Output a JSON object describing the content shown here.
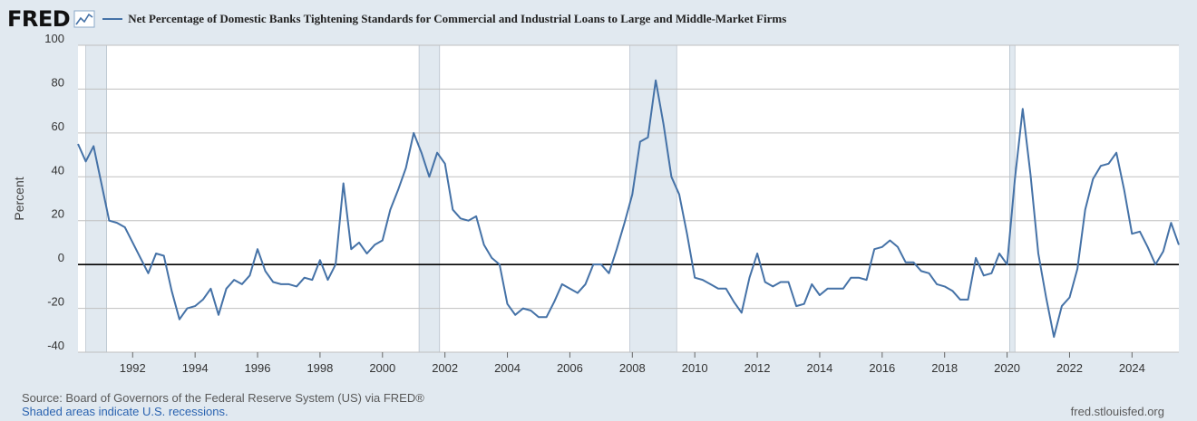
{
  "header": {
    "logo": "FRED",
    "logo_icon": "line-chart-icon",
    "series_title": "Net Percentage of Domestic Banks Tightening Standards for Commercial and Industrial Loans to Large and Middle-Market Firms"
  },
  "footer": {
    "source": "Source: Board of Governors of the Federal Reserve System (US) via FRED®",
    "note": "Shaded areas indicate U.S. recessions.",
    "url": "fred.stlouisfed.org"
  },
  "colors": {
    "background": "#e1e9f0",
    "series": "#4572a7",
    "recession": "#e1e9f0",
    "gridline": "#c0c0c0"
  },
  "chart_data": {
    "type": "line",
    "title": "Net Percentage of Domestic Banks Tightening Standards for Commercial and Industrial Loans to Large and Middle-Market Firms",
    "xlabel": "",
    "ylabel": "Percent",
    "xlim": [
      1990.25,
      2025.5
    ],
    "ylim": [
      -40,
      100
    ],
    "yticks": [
      -40,
      -20,
      0,
      20,
      40,
      60,
      80,
      100
    ],
    "xticks": [
      1992,
      1994,
      1996,
      1998,
      2000,
      2002,
      2004,
      2006,
      2008,
      2010,
      2012,
      2014,
      2016,
      2018,
      2020,
      2022,
      2024
    ],
    "grid": true,
    "zero_line": true,
    "recessions": [
      [
        1990.5,
        1991.17
      ],
      [
        2001.17,
        2001.83
      ],
      [
        2007.92,
        2009.42
      ],
      [
        2020.08,
        2020.25
      ]
    ],
    "series": [
      {
        "name": "Net Percentage of Domestic Banks Tightening Standards for Commercial and Industrial Loans to Large and Middle-Market Firms",
        "x": [
          1990.25,
          1990.5,
          1990.75,
          1991,
          1991.25,
          1991.5,
          1991.75,
          1992,
          1992.25,
          1992.5,
          1992.75,
          1993,
          1993.25,
          1993.5,
          1993.75,
          1994,
          1994.25,
          1994.5,
          1994.75,
          1995,
          1995.25,
          1995.5,
          1995.75,
          1996,
          1996.25,
          1996.5,
          1996.75,
          1997,
          1997.25,
          1997.5,
          1997.75,
          1998,
          1998.25,
          1998.5,
          1998.75,
          1999,
          1999.25,
          1999.5,
          1999.75,
          2000,
          2000.25,
          2000.5,
          2000.75,
          2001,
          2001.25,
          2001.5,
          2001.75,
          2002,
          2002.25,
          2002.5,
          2002.75,
          2003,
          2003.25,
          2003.5,
          2003.75,
          2004,
          2004.25,
          2004.5,
          2004.75,
          2005,
          2005.25,
          2005.5,
          2005.75,
          2006,
          2006.25,
          2006.5,
          2006.75,
          2007,
          2007.25,
          2007.5,
          2007.75,
          2008,
          2008.25,
          2008.5,
          2008.75,
          2009,
          2009.25,
          2009.5,
          2009.75,
          2010,
          2010.25,
          2010.5,
          2010.75,
          2011,
          2011.25,
          2011.5,
          2011.75,
          2012,
          2012.25,
          2012.5,
          2012.75,
          2013,
          2013.25,
          2013.5,
          2013.75,
          2014,
          2014.25,
          2014.5,
          2014.75,
          2015,
          2015.25,
          2015.5,
          2015.75,
          2016,
          2016.25,
          2016.5,
          2016.75,
          2017,
          2017.25,
          2017.5,
          2017.75,
          2018,
          2018.25,
          2018.5,
          2018.75,
          2019,
          2019.25,
          2019.5,
          2019.75,
          2020,
          2020.25,
          2020.5,
          2020.75,
          2021,
          2021.25,
          2021.5,
          2021.75,
          2022,
          2022.25,
          2022.5,
          2022.75,
          2023,
          2023.25,
          2023.5,
          2023.75,
          2024,
          2024.25,
          2024.5,
          2024.75,
          2025,
          2025.25,
          2025.5
        ],
        "values": [
          55,
          47,
          54,
          37,
          20,
          19,
          17,
          10,
          3,
          -4,
          5,
          4,
          -12,
          -25,
          -20,
          -19,
          -16,
          -11,
          -23,
          -11,
          -7,
          -9,
          -5,
          7,
          -3,
          -8,
          -9,
          -9,
          -10,
          -6,
          -7,
          2,
          -7,
          0,
          37,
          7,
          10,
          5,
          9,
          11,
          25,
          34,
          44,
          60,
          51,
          40,
          51,
          46,
          25,
          21,
          20,
          22,
          9,
          3,
          0,
          -18,
          -23,
          -20,
          -21,
          -24,
          -24,
          -17,
          -9,
          -11,
          -13,
          -9,
          0,
          0,
          -4,
          7,
          19,
          32,
          56,
          58,
          84,
          64,
          40,
          32,
          14,
          -6,
          -7,
          -9,
          -11,
          -11,
          -17,
          -22,
          -6,
          5,
          -8,
          -10,
          -8,
          -8,
          -19,
          -18,
          -9,
          -14,
          -11,
          -11,
          -11,
          -6,
          -6,
          -7,
          7,
          8,
          11,
          8,
          1,
          1,
          -3,
          -4,
          -9,
          -10,
          -12,
          -16,
          -16,
          3,
          -5,
          -4,
          5,
          0,
          39,
          71,
          41,
          5,
          -15,
          -33,
          -19,
          -15,
          -2,
          25,
          39,
          45,
          46,
          51,
          34,
          14,
          15,
          8,
          0,
          6,
          19,
          9
        ]
      }
    ]
  }
}
